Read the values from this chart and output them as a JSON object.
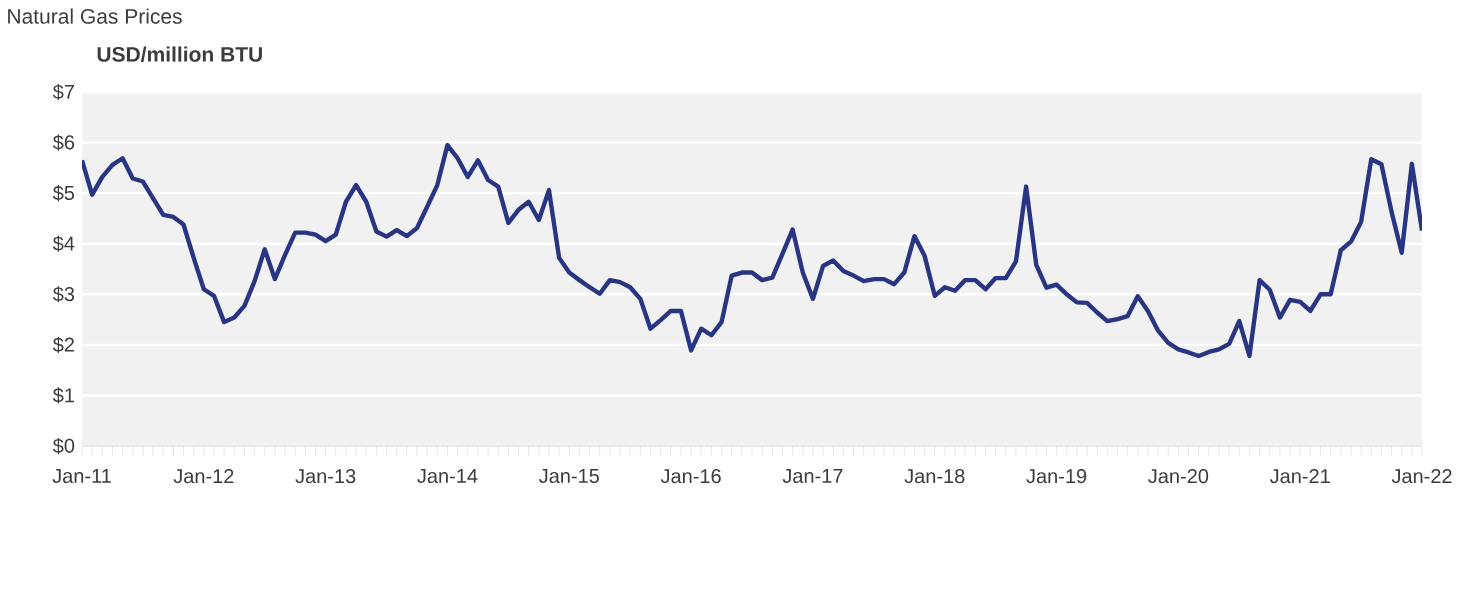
{
  "chart_data": {
    "type": "line",
    "title": "Natural Gas Prices",
    "subtitle": "USD/million BTU",
    "x": [
      "2011-01",
      "2011-02",
      "2011-03",
      "2011-04",
      "2011-05",
      "2011-06",
      "2011-07",
      "2011-08",
      "2011-09",
      "2011-10",
      "2011-11",
      "2011-12",
      "2012-01",
      "2012-02",
      "2012-03",
      "2012-04",
      "2012-05",
      "2012-06",
      "2012-07",
      "2012-08",
      "2012-09",
      "2012-10",
      "2012-11",
      "2012-12",
      "2013-01",
      "2013-02",
      "2013-03",
      "2013-04",
      "2013-05",
      "2013-06",
      "2013-07",
      "2013-08",
      "2013-09",
      "2013-10",
      "2013-11",
      "2013-12",
      "2014-01",
      "2014-02",
      "2014-03",
      "2014-04",
      "2014-05",
      "2014-06",
      "2014-07",
      "2014-08",
      "2014-09",
      "2014-10",
      "2014-11",
      "2014-12",
      "2015-01",
      "2015-02",
      "2015-03",
      "2015-04",
      "2015-05",
      "2015-06",
      "2015-07",
      "2015-08",
      "2015-09",
      "2015-10",
      "2015-11",
      "2015-12",
      "2016-01",
      "2016-02",
      "2016-03",
      "2016-04",
      "2016-05",
      "2016-06",
      "2016-07",
      "2016-08",
      "2016-09",
      "2016-10",
      "2016-11",
      "2016-12",
      "2017-01",
      "2017-02",
      "2017-03",
      "2017-04",
      "2017-05",
      "2017-06",
      "2017-07",
      "2017-08",
      "2017-09",
      "2017-10",
      "2017-11",
      "2017-12",
      "2018-01",
      "2018-02",
      "2018-03",
      "2018-04",
      "2018-05",
      "2018-06",
      "2018-07",
      "2018-08",
      "2018-09",
      "2018-10",
      "2018-11",
      "2018-12",
      "2019-01",
      "2019-02",
      "2019-03",
      "2019-04",
      "2019-05",
      "2019-06",
      "2019-07",
      "2019-08",
      "2019-09",
      "2019-10",
      "2019-11",
      "2019-12",
      "2020-01",
      "2020-02",
      "2020-03",
      "2020-04",
      "2020-05",
      "2020-06",
      "2020-07",
      "2020-08",
      "2020-09",
      "2020-10",
      "2020-11",
      "2020-12",
      "2021-01",
      "2021-02",
      "2021-03",
      "2021-04",
      "2021-05",
      "2021-06",
      "2021-07",
      "2021-08",
      "2021-09",
      "2021-10",
      "2021-11",
      "2021-12",
      "2022-01"
    ],
    "series": [
      {
        "color": "#283583",
        "values": [
          5.65,
          4.97,
          5.32,
          5.56,
          5.69,
          5.29,
          5.23,
          4.9,
          4.57,
          4.53,
          4.38,
          3.72,
          3.1,
          2.97,
          2.45,
          2.54,
          2.77,
          3.26,
          3.89,
          3.3,
          3.78,
          4.22,
          4.22,
          4.18,
          4.05,
          4.18,
          4.83,
          5.16,
          4.83,
          4.24,
          4.14,
          4.27,
          4.15,
          4.31,
          4.73,
          5.16,
          5.95,
          5.69,
          5.32,
          5.65,
          5.26,
          5.13,
          4.41,
          4.67,
          4.83,
          4.47,
          5.06,
          3.72,
          3.43,
          3.28,
          3.14,
          3.01,
          3.28,
          3.24,
          3.14,
          2.91,
          2.32,
          2.49,
          2.67,
          2.67,
          1.89,
          2.32,
          2.19,
          2.45,
          3.37,
          3.43,
          3.43,
          3.28,
          3.33,
          3.8,
          4.28,
          3.43,
          2.91,
          3.56,
          3.67,
          3.46,
          3.37,
          3.26,
          3.3,
          3.3,
          3.2,
          3.43,
          4.15,
          3.76,
          2.97,
          3.14,
          3.07,
          3.28,
          3.28,
          3.1,
          3.32,
          3.32,
          3.65,
          5.13,
          3.58,
          3.13,
          3.19,
          3.0,
          2.84,
          2.83,
          2.64,
          2.47,
          2.51,
          2.57,
          2.96,
          2.67,
          2.28,
          2.04,
          1.91,
          1.85,
          1.78,
          1.86,
          1.91,
          2.02,
          2.47,
          1.78,
          3.28,
          3.09,
          2.54,
          2.89,
          2.85,
          2.67,
          3.0,
          3.0,
          3.87,
          4.04,
          4.43,
          5.67,
          5.57,
          4.63,
          3.82,
          5.58,
          4.26
        ]
      }
    ],
    "xlim": [
      "2011-01",
      "2022-01"
    ],
    "xticks": [
      {
        "value": "2011-01",
        "label": "Jan-11"
      },
      {
        "value": "2012-01",
        "label": "Jan-12"
      },
      {
        "value": "2013-01",
        "label": "Jan-13"
      },
      {
        "value": "2014-01",
        "label": "Jan-14"
      },
      {
        "value": "2015-01",
        "label": "Jan-15"
      },
      {
        "value": "2016-01",
        "label": "Jan-16"
      },
      {
        "value": "2017-01",
        "label": "Jan-17"
      },
      {
        "value": "2018-01",
        "label": "Jan-18"
      },
      {
        "value": "2019-01",
        "label": "Jan-19"
      },
      {
        "value": "2020-01",
        "label": "Jan-20"
      },
      {
        "value": "2021-01",
        "label": "Jan-21"
      },
      {
        "value": "2022-01",
        "label": "Jan-22"
      }
    ],
    "ylim": [
      0,
      7
    ],
    "yticks": [
      {
        "value": 0,
        "label": "$0"
      },
      {
        "value": 1,
        "label": "$1"
      },
      {
        "value": 2,
        "label": "$2"
      },
      {
        "value": 3,
        "label": "$3"
      },
      {
        "value": 4,
        "label": "$4"
      },
      {
        "value": 5,
        "label": "$5"
      },
      {
        "value": 6,
        "label": "$6"
      },
      {
        "value": 7,
        "label": "$7"
      }
    ],
    "grid": "y",
    "marker": "none",
    "line_style": "solid"
  }
}
